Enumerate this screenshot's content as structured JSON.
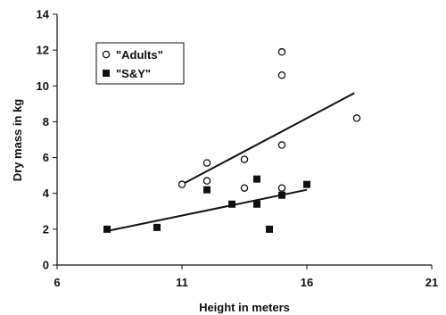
{
  "chart_data": {
    "type": "scatter",
    "title": "",
    "xlabel": "Height in meters",
    "ylabel": "Dry mass in kg",
    "xlim": [
      6,
      21
    ],
    "ylim": [
      0,
      14
    ],
    "xticks": [
      6,
      11,
      16,
      21
    ],
    "yticks": [
      0,
      2,
      4,
      6,
      8,
      10,
      12,
      14
    ],
    "grid": false,
    "legend_position": "top-left",
    "series": [
      {
        "name": "\"Adults\"",
        "marker": "open-circle",
        "color": "#111111",
        "points": [
          [
            11,
            4.5
          ],
          [
            12,
            5.7
          ],
          [
            12,
            4.7
          ],
          [
            13.5,
            5.9
          ],
          [
            13.5,
            4.3
          ],
          [
            15,
            11.9
          ],
          [
            15,
            10.6
          ],
          [
            15,
            6.7
          ],
          [
            15,
            4.3
          ],
          [
            18,
            8.2
          ]
        ],
        "trendline": [
          [
            11,
            4.5
          ],
          [
            17.9,
            9.6
          ]
        ]
      },
      {
        "name": "\"S&Y\"",
        "marker": "filled-square",
        "color": "#111111",
        "points": [
          [
            8,
            2.0
          ],
          [
            10,
            2.1
          ],
          [
            12,
            4.2
          ],
          [
            13,
            3.4
          ],
          [
            14,
            4.8
          ],
          [
            14,
            3.4
          ],
          [
            14.5,
            2.0
          ],
          [
            15,
            3.9
          ],
          [
            16,
            4.5
          ]
        ],
        "trendline": [
          [
            8,
            1.9
          ],
          [
            16,
            4.2
          ]
        ]
      }
    ]
  }
}
